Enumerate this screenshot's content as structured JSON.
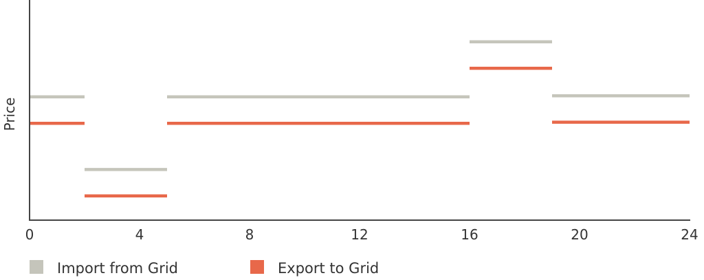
{
  "chart_data": {
    "type": "line",
    "title": "",
    "xlabel": "",
    "ylabel": "Price",
    "xlim": [
      0,
      24
    ],
    "ylim": [
      0,
      1
    ],
    "xticks": [
      "0",
      "4",
      "8",
      "12",
      "16",
      "20",
      "24"
    ],
    "grid": false,
    "legend_placement": "bottom-left",
    "series": [
      {
        "name": "Import from Grid",
        "color": "#c5c5bb",
        "step_segments": [
          {
            "x0": 0,
            "x1": 2,
            "y": 0.56
          },
          {
            "x0": 2,
            "x1": 5,
            "y": 0.23
          },
          {
            "x0": 5,
            "x1": 16,
            "y": 0.56
          },
          {
            "x0": 16,
            "x1": 19,
            "y": 0.81
          },
          {
            "x0": 19,
            "x1": 24,
            "y": 0.565
          }
        ]
      },
      {
        "name": "Export to Grid",
        "color": "#e8684a",
        "step_segments": [
          {
            "x0": 0,
            "x1": 2,
            "y": 0.44
          },
          {
            "x0": 2,
            "x1": 5,
            "y": 0.11
          },
          {
            "x0": 5,
            "x1": 16,
            "y": 0.44
          },
          {
            "x0": 16,
            "x1": 19,
            "y": 0.69
          },
          {
            "x0": 19,
            "x1": 24,
            "y": 0.445
          }
        ]
      }
    ]
  }
}
